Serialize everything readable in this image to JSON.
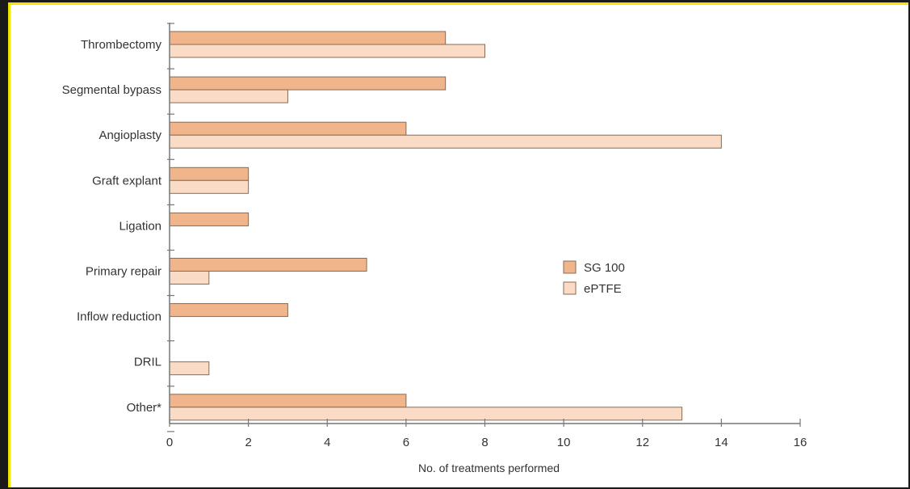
{
  "chart_data": {
    "type": "bar",
    "orientation": "horizontal",
    "categories": [
      "Thrombectomy",
      "Segmental bypass",
      "Angioplasty",
      "Graft explant",
      "Ligation",
      "Primary repair",
      "Inflow reduction",
      "DRIL",
      "Other*"
    ],
    "series": [
      {
        "name": "SG 100",
        "values": [
          7,
          7,
          6,
          2,
          2,
          5,
          3,
          0,
          6
        ],
        "color": "#f0b58a"
      },
      {
        "name": "ePTFE",
        "values": [
          8,
          3,
          14,
          2,
          0,
          1,
          0,
          1,
          13
        ],
        "color": "#fadcc6"
      }
    ],
    "xlabel": "No. of treatments performed",
    "ylabel": "",
    "xlim": [
      0,
      16
    ],
    "xticks": [
      "0",
      "2",
      "4",
      "6",
      "8",
      "10",
      "12",
      "14",
      "16"
    ],
    "legend": "right",
    "grid": false
  }
}
